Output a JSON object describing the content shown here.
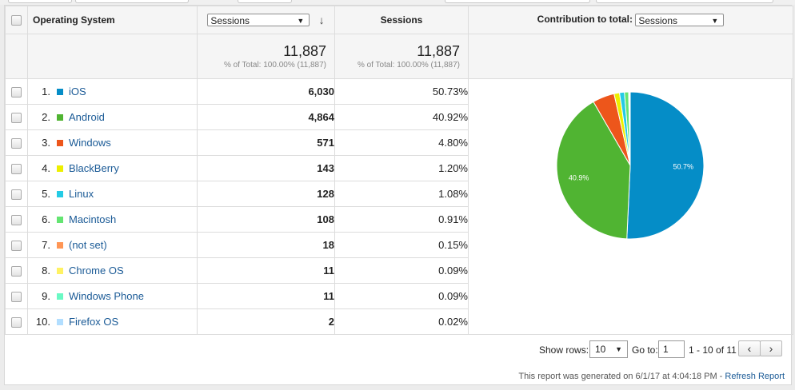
{
  "header": {
    "dimension_label": "Operating System",
    "metric_select": "Sessions",
    "sessions_label": "Sessions",
    "contribution_label": "Contribution to total:",
    "contribution_select": "Sessions"
  },
  "totals": {
    "sessions": "11,887",
    "sessions_sub": "% of Total: 100.00% (11,887)",
    "sessions2": "11,887",
    "sessions2_sub": "% of Total: 100.00% (11,887)"
  },
  "colors": {
    "ios": "#058dc7",
    "android": "#50b432",
    "windows": "#ed561b",
    "blackberry": "#edef00",
    "linux": "#24cbe5",
    "macintosh": "#64e572",
    "notset": "#ff9655",
    "chromeos": "#fff263",
    "windowsphone": "#6af9c4",
    "firefoxos": "#b2deff"
  },
  "rows": [
    {
      "rank": "1.",
      "name": "iOS",
      "sessions": "6,030",
      "pct": "50.73%",
      "color": "#058dc7"
    },
    {
      "rank": "2.",
      "name": "Android",
      "sessions": "4,864",
      "pct": "40.92%",
      "color": "#50b432"
    },
    {
      "rank": "3.",
      "name": "Windows",
      "sessions": "571",
      "pct": "4.80%",
      "color": "#ed561b"
    },
    {
      "rank": "4.",
      "name": "BlackBerry",
      "sessions": "143",
      "pct": "1.20%",
      "color": "#edef00"
    },
    {
      "rank": "5.",
      "name": "Linux",
      "sessions": "128",
      "pct": "1.08%",
      "color": "#24cbe5"
    },
    {
      "rank": "6.",
      "name": "Macintosh",
      "sessions": "108",
      "pct": "0.91%",
      "color": "#64e572"
    },
    {
      "rank": "7.",
      "name": "(not set)",
      "sessions": "18",
      "pct": "0.15%",
      "color": "#ff9655"
    },
    {
      "rank": "8.",
      "name": "Chrome OS",
      "sessions": "11",
      "pct": "0.09%",
      "color": "#fff263"
    },
    {
      "rank": "9.",
      "name": "Windows Phone",
      "sessions": "11",
      "pct": "0.09%",
      "color": "#6af9c4"
    },
    {
      "rank": "10.",
      "name": "Firefox OS",
      "sessions": "2",
      "pct": "0.02%",
      "color": "#b2deff"
    }
  ],
  "chart_data": {
    "type": "pie",
    "values": [
      50.73,
      40.92,
      4.8,
      1.2,
      1.08,
      0.91,
      0.15,
      0.09,
      0.09,
      0.02
    ],
    "colors": [
      "#058dc7",
      "#50b432",
      "#ed561b",
      "#edef00",
      "#24cbe5",
      "#64e572",
      "#ff9655",
      "#fff263",
      "#6af9c4",
      "#b2deff"
    ],
    "data_labels": [
      "50.7%",
      "40.9%",
      "",
      "",
      "",
      "",
      "",
      "",
      "",
      ""
    ]
  },
  "footer": {
    "show_rows_label": "Show rows:",
    "show_rows_value": "10",
    "goto_label": "Go to:",
    "goto_value": "1",
    "range_text": "1 - 10 of 11",
    "prev_icon": "‹",
    "next_icon": "›",
    "generated_text": "This report was generated on 6/1/17 at 4:04:18 PM -",
    "refresh_label": "Refresh Report"
  }
}
